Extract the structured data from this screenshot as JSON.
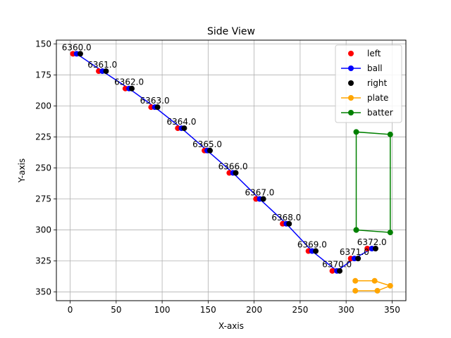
{
  "chart_data": {
    "type": "scatter",
    "title": "Side View",
    "xlabel": "X-axis",
    "ylabel": "Y-axis",
    "xlim": [
      -15,
      365
    ],
    "ylim": [
      357,
      147
    ],
    "y_inverted": true,
    "x_ticks": [
      0,
      50,
      100,
      150,
      200,
      250,
      300,
      350
    ],
    "y_ticks": [
      150,
      175,
      200,
      225,
      250,
      275,
      300,
      325,
      350
    ],
    "grid": true,
    "legend_placement": "top-right",
    "series": [
      {
        "name": "left",
        "kind": "scatter",
        "color": "#ff0000",
        "points": [
          [
            3,
            158
          ],
          [
            31,
            172
          ],
          [
            60,
            186
          ],
          [
            88,
            201
          ],
          [
            117,
            218
          ],
          [
            146,
            236
          ],
          [
            173,
            254
          ],
          [
            202,
            275
          ],
          [
            231,
            295
          ],
          [
            259,
            317
          ],
          [
            285,
            333
          ],
          [
            305,
            323
          ],
          [
            323,
            315
          ]
        ]
      },
      {
        "name": "ball",
        "kind": "line",
        "color": "#0000ff",
        "points": [
          [
            7,
            158
          ],
          [
            35,
            172
          ],
          [
            64,
            186
          ],
          [
            92,
            201
          ],
          [
            121,
            218
          ],
          [
            149,
            236
          ],
          [
            177,
            254
          ],
          [
            206,
            275
          ],
          [
            235,
            295
          ],
          [
            263,
            317
          ],
          [
            290,
            333
          ],
          [
            309,
            323
          ],
          [
            328,
            315
          ]
        ]
      },
      {
        "name": "right",
        "kind": "scatter",
        "color": "#000000",
        "points": [
          [
            11,
            158
          ],
          [
            39,
            172
          ],
          [
            67,
            186
          ],
          [
            95,
            201
          ],
          [
            124,
            218
          ],
          [
            152,
            236
          ],
          [
            180,
            254
          ],
          [
            210,
            275
          ],
          [
            238,
            295
          ],
          [
            267,
            317
          ],
          [
            293,
            333
          ],
          [
            313,
            323
          ],
          [
            332,
            315
          ]
        ]
      },
      {
        "name": "plate",
        "kind": "line",
        "color": "#ffa500",
        "points": [
          [
            310,
            341
          ],
          [
            331,
            341
          ],
          [
            348,
            345
          ],
          [
            334,
            349
          ],
          [
            310,
            349
          ]
        ]
      },
      {
        "name": "batter",
        "kind": "line",
        "color": "#008000",
        "points": [
          [
            311,
            300
          ],
          [
            311,
            221
          ],
          [
            348,
            223
          ],
          [
            348,
            302
          ],
          [
            311,
            300
          ]
        ]
      }
    ],
    "annotations": [
      {
        "text": "6360.0",
        "x": 7,
        "y": 158
      },
      {
        "text": "6361.0",
        "x": 35,
        "y": 172
      },
      {
        "text": "6362.0",
        "x": 64,
        "y": 186
      },
      {
        "text": "6363.0",
        "x": 92,
        "y": 201
      },
      {
        "text": "6364.0",
        "x": 121,
        "y": 218
      },
      {
        "text": "6365.0",
        "x": 149,
        "y": 236
      },
      {
        "text": "6366.0",
        "x": 177,
        "y": 254
      },
      {
        "text": "6367.0",
        "x": 206,
        "y": 275
      },
      {
        "text": "6368.0",
        "x": 235,
        "y": 295
      },
      {
        "text": "6369.0",
        "x": 263,
        "y": 317
      },
      {
        "text": "6370.0",
        "x": 290,
        "y": 333
      },
      {
        "text": "6371.0",
        "x": 309,
        "y": 323
      },
      {
        "text": "6372.0",
        "x": 328,
        "y": 315
      }
    ],
    "legend": [
      "left",
      "ball",
      "right",
      "plate",
      "batter"
    ]
  }
}
